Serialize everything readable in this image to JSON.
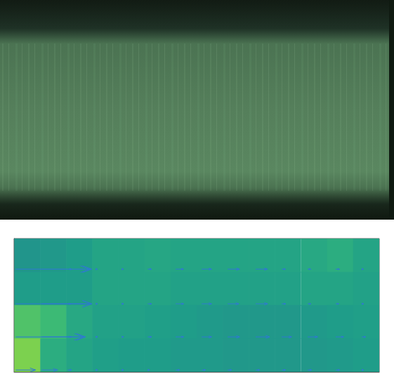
{
  "chart_data": {
    "type": "quiver",
    "xlim": [
      0.26,
      9.39
    ],
    "xticks": [
      1,
      2,
      3,
      4,
      5,
      6,
      7,
      8,
      9
    ],
    "ylim": [
      0.84,
      5.07
    ],
    "yticks": [
      1,
      2,
      3,
      4,
      5
    ],
    "tick_labels": false,
    "grid": false,
    "color": "#2f7ad1",
    "heat_x": [
      0.59,
      1.24,
      1.89,
      2.54,
      3.19,
      3.85,
      4.5,
      5.15,
      5.8,
      6.45,
      7.1,
      7.76,
      8.41,
      9.06
    ],
    "heat_y": [
      4.54,
      3.48,
      2.43,
      1.37
    ],
    "heat_values": [
      [
        0.52,
        0.53,
        0.55,
        0.58,
        0.58,
        0.59,
        0.58,
        0.58,
        0.58,
        0.58,
        0.58,
        0.6,
        0.62,
        0.58
      ],
      [
        0.55,
        0.55,
        0.55,
        0.58,
        0.58,
        0.58,
        0.57,
        0.57,
        0.57,
        0.57,
        0.57,
        0.58,
        0.58,
        0.57
      ],
      [
        0.72,
        0.68,
        0.6,
        0.57,
        0.57,
        0.56,
        0.55,
        0.54,
        0.53,
        0.53,
        0.53,
        0.54,
        0.55,
        0.56
      ],
      [
        0.8,
        0.62,
        0.58,
        0.56,
        0.55,
        0.55,
        0.54,
        0.54,
        0.53,
        0.53,
        0.53,
        0.53,
        0.54,
        0.55
      ]
    ],
    "clim": [
      0,
      1
    ],
    "x": [
      0.3,
      0.95,
      1.6,
      2.3,
      2.95,
      3.6,
      4.3,
      4.95,
      5.6,
      6.3,
      6.95,
      7.6,
      8.3,
      8.95
    ],
    "y": [
      4.1,
      3.0,
      1.95,
      0.9
    ],
    "u": [
      [
        1.85,
        1.25,
        0.1,
        0.05,
        0.05,
        0.1,
        0.2,
        0.25,
        0.3,
        0.3,
        0.1,
        0.08,
        0.1,
        0.05
      ],
      [
        1.9,
        1.25,
        0.08,
        0.05,
        0.05,
        0.1,
        0.2,
        0.25,
        0.28,
        0.3,
        0.1,
        0.08,
        0.08,
        0.05
      ],
      [
        1.7,
        1.1,
        0.1,
        0.05,
        0.05,
        0.1,
        0.2,
        0.25,
        0.3,
        0.35,
        0.25,
        0.25,
        0.2,
        0.1
      ],
      [
        0.5,
        0.4,
        0.1,
        0.05,
        0.05,
        0.05,
        0.1,
        0.1,
        0.1,
        0.1,
        0.1,
        0.1,
        0.1,
        0.05
      ]
    ],
    "v": [
      [
        0,
        0,
        0,
        0,
        0,
        0,
        0,
        0,
        0,
        0,
        0,
        0,
        0,
        0
      ],
      [
        0,
        0,
        0,
        0,
        0,
        0,
        0,
        0,
        0,
        0,
        0,
        0,
        0,
        0
      ],
      [
        0,
        0,
        0,
        0,
        0,
        0,
        0,
        0,
        0,
        0,
        0,
        0,
        0,
        0
      ],
      [
        0,
        0,
        0,
        0,
        0,
        0,
        0,
        0,
        0,
        0,
        0,
        0,
        0,
        0
      ]
    ]
  }
}
